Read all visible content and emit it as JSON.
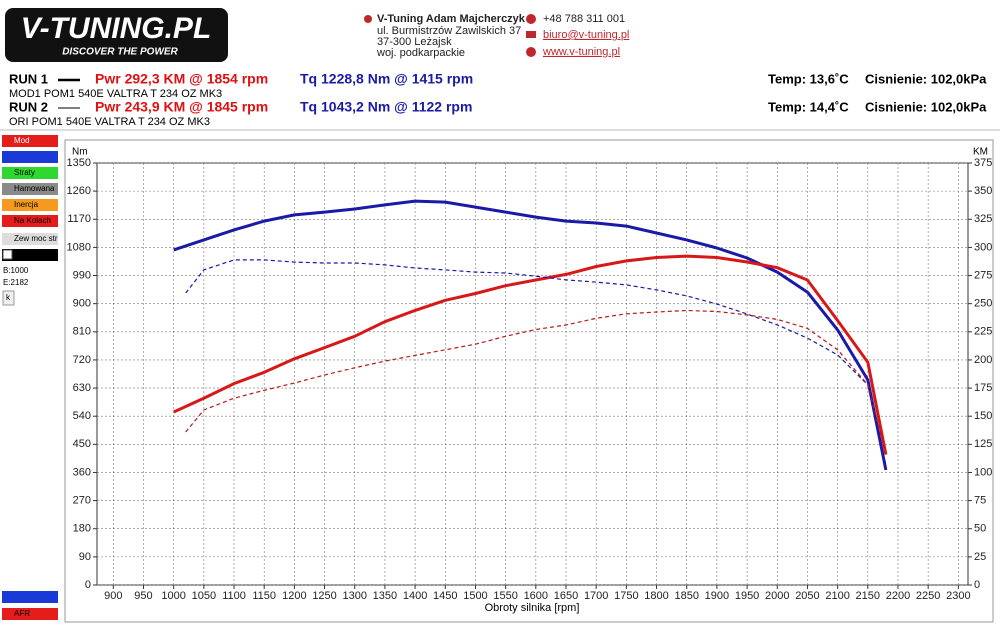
{
  "header": {
    "logo": "V-TUNING.PL",
    "slogan": "DISCOVER THE POWER",
    "company": "V-Tuning Adam Majcherczyk",
    "address": [
      "ul. Burmistrzów Zawilskich 37",
      "37-300 Leżajsk",
      "woj. podkarpackie"
    ],
    "phone": "+48 788 311 001",
    "email": "biuro@v-tuning.pl",
    "www": "www.v-tuning.pl"
  },
  "runs": [
    {
      "label": "RUN 1",
      "power": "Pwr 292,3 KM @ 1854 rpm",
      "torque": "Tq 1228,8 Nm @ 1415 rpm",
      "description": "MOD1 POM1 540E VALTRA T 234 OZ MK3",
      "temp": "Temp: 13,6˚C",
      "pressure": "Cisnienie: 102,0kPa"
    },
    {
      "label": "RUN 2",
      "power": "Pwr 243,9 KM @ 1845 rpm",
      "torque": "Tq 1043,2 Nm @ 1122 rpm",
      "description": "ORI POM1 540E VALTRA T 234 OZ MK3",
      "temp": "Temp: 14,4˚C",
      "pressure": "Cisnienie: 102,0kPa"
    }
  ],
  "side_panel": {
    "checkboxes": [
      "Mod",
      "Straty",
      "Hamowana",
      "Inercja",
      "Na Kolach",
      "Zew moc str"
    ],
    "begin": "B:1000",
    "end": "E:2182",
    "button": "k",
    "bottom": "AFR"
  },
  "chart_data": {
    "type": "line",
    "y_label": "Nm",
    "y2_label": "KM",
    "x_label": "Obroty silnika [rpm]",
    "xlim": [
      873,
      2316
    ],
    "xticks": [
      900,
      950,
      1000,
      1050,
      1100,
      1150,
      1200,
      1250,
      1300,
      1350,
      1400,
      1450,
      1500,
      1550,
      1600,
      1650,
      1700,
      1750,
      1800,
      1850,
      1900,
      1950,
      2000,
      2050,
      2100,
      2150,
      2200,
      2250,
      2300
    ],
    "ylim": [
      0,
      1350
    ],
    "yticks": [
      0,
      90,
      180,
      270,
      360,
      450,
      540,
      630,
      720,
      810,
      900,
      990,
      1080,
      1170,
      1260,
      1350
    ],
    "y2lim": [
      0,
      375
    ],
    "y2ticks": [
      0,
      25,
      50,
      75,
      100,
      125,
      150,
      175,
      200,
      225,
      250,
      275,
      300,
      325,
      350,
      375
    ],
    "grid": true,
    "series": [
      {
        "color": "#1a1aa8",
        "line_style": "solid",
        "axis": "y",
        "x": [
          1000,
          1050,
          1100,
          1150,
          1200,
          1250,
          1300,
          1350,
          1400,
          1450,
          1500,
          1550,
          1600,
          1650,
          1700,
          1750,
          1800,
          1850,
          1900,
          1950,
          2000,
          2050,
          2100,
          2150,
          2180
        ],
        "values": [
          1072,
          1104,
          1136,
          1164,
          1184,
          1193,
          1203,
          1216,
          1228,
          1225,
          1209,
          1193,
          1177,
          1164,
          1158,
          1148,
          1126,
          1104,
          1078,
          1046,
          1001,
          937,
          816,
          656,
          368
        ]
      },
      {
        "color": "#d81818",
        "line_style": "solid",
        "axis": "y2",
        "x": [
          1000,
          1050,
          1100,
          1150,
          1200,
          1250,
          1300,
          1350,
          1400,
          1450,
          1500,
          1550,
          1600,
          1650,
          1700,
          1750,
          1800,
          1850,
          1900,
          1950,
          2000,
          2050,
          2100,
          2150,
          2180
        ],
        "values": [
          153.7,
          166,
          179,
          189,
          201,
          211,
          221,
          234,
          244,
          253,
          259,
          266,
          271,
          276,
          283,
          288,
          291,
          292.3,
          291,
          287,
          282,
          271,
          235,
          198,
          116
        ]
      },
      {
        "color": "#1a1aa8",
        "line_style": "dashed",
        "axis": "y",
        "x": [
          1020,
          1050,
          1100,
          1150,
          1200,
          1250,
          1300,
          1350,
          1400,
          1450,
          1500,
          1550,
          1600,
          1650,
          1700,
          1750,
          1800,
          1850,
          1900,
          1950,
          2000,
          2050,
          2100,
          2150,
          2180
        ],
        "values": [
          934,
          1008,
          1040,
          1040,
          1033,
          1030,
          1030,
          1024,
          1014,
          1008,
          1001,
          998,
          988,
          976,
          969,
          960,
          944,
          925,
          899,
          867,
          832,
          790,
          736,
          640,
          384
        ]
      },
      {
        "color": "#b81818",
        "line_style": "dashed",
        "axis": "y2",
        "x": [
          1020,
          1050,
          1100,
          1150,
          1200,
          1250,
          1300,
          1350,
          1400,
          1450,
          1500,
          1550,
          1600,
          1650,
          1700,
          1750,
          1800,
          1850,
          1900,
          1950,
          2000,
          2050,
          2100,
          2150,
          2180
        ],
        "values": [
          136,
          155.5,
          166,
          173,
          179.5,
          186.6,
          193,
          199,
          204,
          209,
          214,
          221,
          227,
          231,
          237,
          241,
          242.6,
          243.9,
          243,
          240,
          236,
          228,
          209,
          178,
          116
        ]
      }
    ]
  }
}
